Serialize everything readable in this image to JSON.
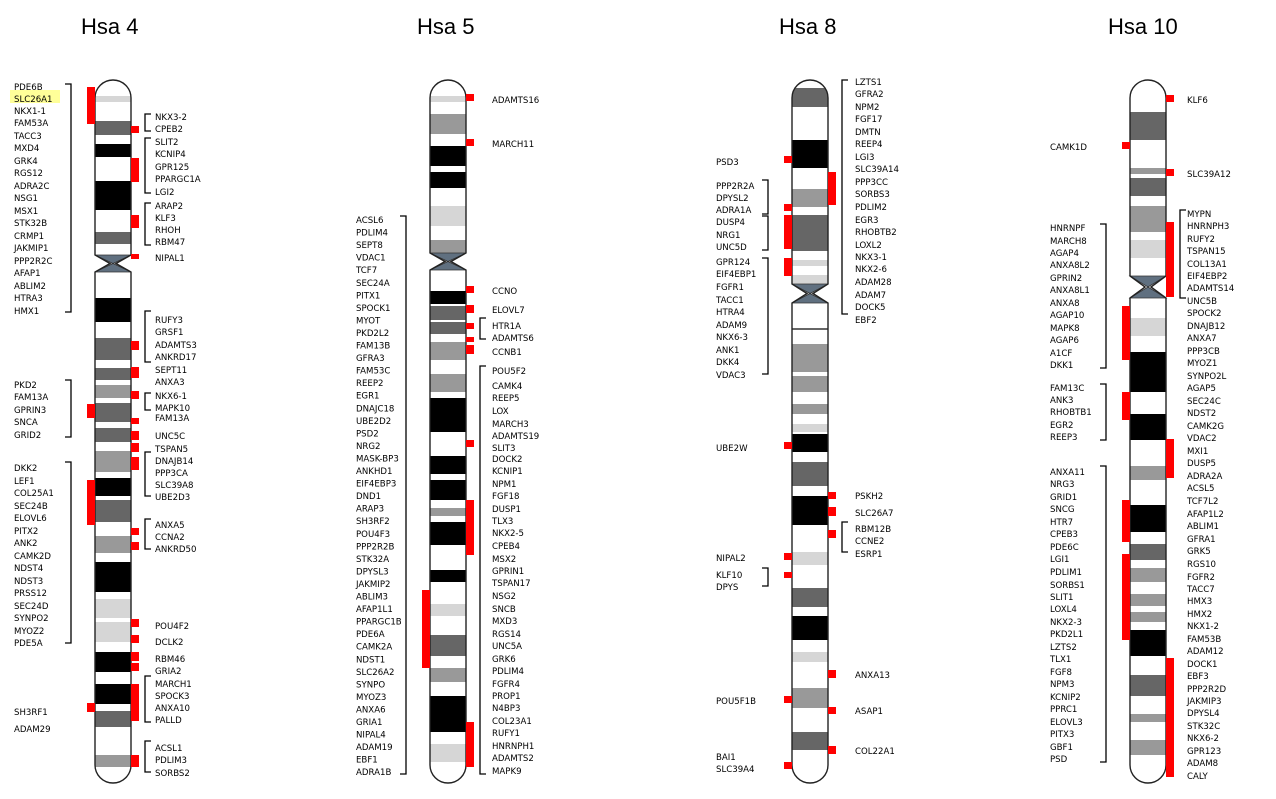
{
  "chromosomes": [
    {
      "title": "Hsa 4",
      "left_labels": [
        "PDE6B",
        "SLC26A1",
        "NKX1-1",
        "FAM53A",
        "TACC3",
        "MXD4",
        "GRK4",
        "RGS12",
        "ADRA2C",
        "NSG1",
        "MSX1",
        "STK32B",
        "CRMP1",
        "JAKMIP1",
        "PPP2R2C",
        "AFAP1",
        "ABLIM2",
        "HTRA3",
        "HMX1",
        "PKD2",
        "FAM13A",
        "GPRIN3",
        "SNCA",
        "GRID2",
        "DKK2",
        "LEF1",
        "COL25A1",
        "SEC24B",
        "ELOVL6",
        "PITX2",
        "ANK2",
        "CAMK2D",
        "NDST4",
        "NDST3",
        "PRSS12",
        "SEC24D",
        "SYNPO2",
        "MYOZ2",
        "PDE5A",
        "SH3RF1",
        "ADAM29"
      ],
      "highlighted_label": "SLC26A1",
      "right_labels": [
        "NKX3-2",
        "CPEB2",
        "SLIT2",
        "KCNIP4",
        "GPR125",
        "PPARGC1A",
        "LGI2",
        "ARAP2",
        "KLF3",
        "RHOH",
        "RBM47",
        "NIPAL1",
        "RUFY3",
        "GRSF1",
        "ADAMTS3",
        "ANKRD17",
        "SEPT11",
        "ANXA3",
        "NKX6-1",
        "MAPK10",
        "FAM13A",
        "UNC5C",
        "TSPAN5",
        "DNAJB14",
        "PPP3CA",
        "SLC39A8",
        "UBE2D3",
        "ANXA5",
        "CCNA2",
        "ANKRD50",
        "POU4F2",
        "DCLK2",
        "RBM46",
        "GRIA2",
        "MARCH1",
        "SPOCK3",
        "ANXA10",
        "PALLD",
        "ACSL1",
        "PDLIM3",
        "SORBS2"
      ]
    },
    {
      "title": "Hsa 5",
      "left_labels": [
        "ACSL6",
        "PDLIM4",
        "SEPT8",
        "VDAC1",
        "TCF7",
        "SEC24A",
        "PITX1",
        "SPOCK1",
        "MYOT",
        "PKD2L2",
        "FAM13B",
        "GFRA3",
        "FAM53C",
        "REEP2",
        "EGR1",
        "DNAJC18",
        "UBE2D2",
        "PSD2",
        "NRG2",
        "MASK-BP3",
        "ANKHD1",
        "EIF4EBP3",
        "DND1",
        "ARAP3",
        "SH3RF2",
        "POU4F3",
        "PPP2R2B",
        "STK32A",
        "DPYSL3",
        "JAKMIP2",
        "ABLIM3",
        "AFAP1L1",
        "PPARGC1B",
        "PDE6A",
        "CAMK2A",
        "NDST1",
        "SLC26A2",
        "SYNPO",
        "MYOZ3",
        "ANXA6",
        "GRIA1",
        "NIPAL4",
        "ADAM19",
        "EBF1",
        "ADRA1B"
      ],
      "right_labels": [
        "ADAMTS16",
        "MARCH11",
        "CCNO",
        "ELOVL7",
        "HTR1A",
        "ADAMTS6",
        "CCNB1",
        "POU5F2",
        "CAMK4",
        "REEP5",
        "LOX",
        "MARCH3",
        "ADAMTS19",
        "SLIT3",
        "DOCK2",
        "KCNIP1",
        "NPM1",
        "FGF18",
        "DUSP1",
        "TLX3",
        "NKX2-5",
        "CPEB4",
        "MSX2",
        "GPRIN1",
        "TSPAN17",
        "NSG2",
        "SNCB",
        "MXD3",
        "RGS14",
        "UNC5A",
        "GRK6",
        "PDLIM4",
        "FGFR4",
        "PROP1",
        "N4BP3",
        "COL23A1",
        "RUFY1",
        "HNRNPH1",
        "ADAMTS2",
        "MAPK9"
      ]
    },
    {
      "title": "Hsa 8",
      "left_labels": [
        "PSD3",
        "PPP2R2A",
        "DPYSL2",
        "ADRA1A",
        "DUSP4",
        "NRG1",
        "UNC5D",
        "GPR124",
        "EIF4EBP1",
        "FGFR1",
        "TACC1",
        "HTRA4",
        "ADAM9",
        "NKX6-3",
        "ANK1",
        "DKK4",
        "VDAC3",
        "UBE2W",
        "NIPAL2",
        "KLF10",
        "DPYS",
        "POU5F1B",
        "BAI1",
        "SLC39A4"
      ],
      "right_labels": [
        "LZTS1",
        "GFRA2",
        "NPM2",
        "FGF17",
        "DMTN",
        "REEP4",
        "LGI3",
        "SLC39A14",
        "PPP3CC",
        "SORBS3",
        "PDLIM2",
        "EGR3",
        "RHOBTB2",
        "LOXL2",
        "NKX3-1",
        "NKX2-6",
        "ADAM28",
        "ADAM7",
        "DOCK5",
        "EBF2",
        "PSKH2",
        "SLC26A7",
        "RBM12B",
        "CCNE2",
        "ESRP1",
        "ANXA13",
        "ASAP1",
        "COL22A1"
      ]
    },
    {
      "title": "Hsa 10",
      "left_labels": [
        "CAMK1D",
        "HNRNPF",
        "MARCH8",
        "AGAP4",
        "ANXA8L2",
        "GPRIN2",
        "ANXA8L1",
        "ANXA8",
        "AGAP10",
        "MAPK8",
        "AGAP6",
        "A1CF",
        "DKK1",
        "FAM13C",
        "ANK3",
        "RHOBTB1",
        "EGR2",
        "REEP3",
        "ANXA11",
        "NRG3",
        "GRID1",
        "SNCG",
        "HTR7",
        "CPEB3",
        "PDE6C",
        "LGI1",
        "PDLIM1",
        "SORBS1",
        "SLIT1",
        "LOXL4",
        "NKX2-3",
        "PKD2L1",
        "LZTS2",
        "TLX1",
        "FGF8",
        "NPM3",
        "KCNIP2",
        "PPRC1",
        "ELOVL3",
        "PITX3",
        "GBF1",
        "PSD"
      ],
      "right_labels": [
        "KLF6",
        "SLC39A12",
        "MYPN",
        "HNRNPH3",
        "RUFY2",
        "TSPAN15",
        "COL13A1",
        "EIF4EBP2",
        "ADAMTS14",
        "UNC5B",
        "SPOCK2",
        "DNAJB12",
        "ANXA7",
        "PPP3CB",
        "MYOZ1",
        "SYNPO2L",
        "AGAP5",
        "SEC24C",
        "NDST2",
        "CAMK2G",
        "VDAC2",
        "MXI1",
        "DUSP5",
        "ADRA2A",
        "ACSL5",
        "TCF7L2",
        "AFAP1L2",
        "ABLIM1",
        "GFRA1",
        "GRK5",
        "RGS10",
        "FGFR2",
        "TACC7",
        "HMX3",
        "HMX2",
        "NKX1-2",
        "FAM53B",
        "ADAM12",
        "DOCK1",
        "EBF3",
        "PPP2R2D",
        "JAKMIP3",
        "DPYSL4",
        "STK32C",
        "NKX6-2",
        "GPR123",
        "ADAM8",
        "CALY"
      ]
    }
  ],
  "colors": {
    "marker": "#ff0000",
    "bracket": "#000000",
    "highlight": "#ffff99",
    "band_black": "#000000",
    "band_dark": "#666666",
    "band_mid": "#999999",
    "band_light": "#d6d6d6",
    "centromere": "#607080"
  }
}
